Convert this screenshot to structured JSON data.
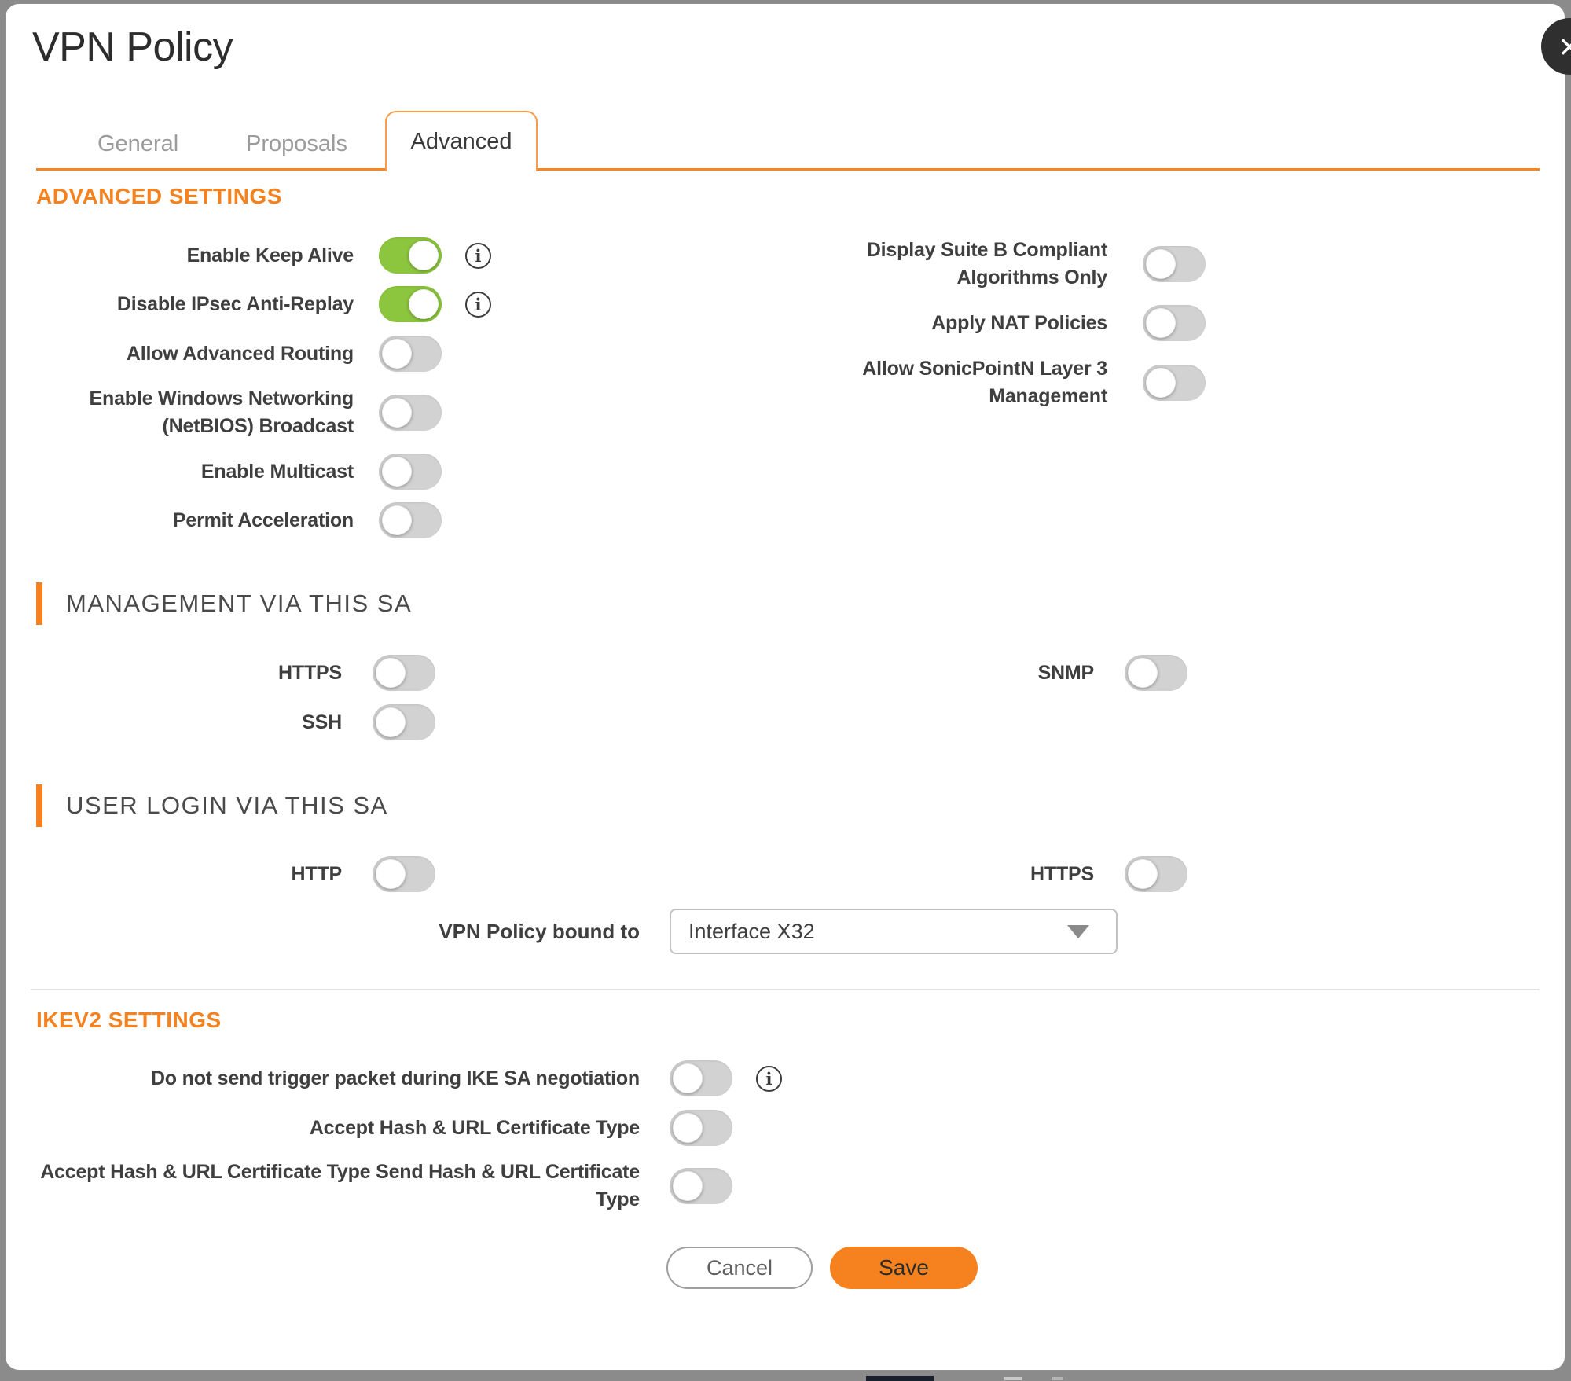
{
  "window": {
    "title": "VPN Policy",
    "close_glyph": "×"
  },
  "tabs": {
    "general": "General",
    "proposals": "Proposals",
    "advanced": "Advanced"
  },
  "colors": {
    "accent_orange": "#F5821F",
    "toggle_on_green": "#8CC63E",
    "toggle_off_gray": "#D2D2D2"
  },
  "info_glyph": "i",
  "dropdown_caret": "triangle-down-icon",
  "advanced_settings": {
    "heading": "ADVANCED SETTINGS",
    "left": [
      {
        "label": "Enable Keep Alive",
        "on": true,
        "info": true
      },
      {
        "label": "Disable IPsec Anti-Replay",
        "on": true,
        "info": true
      },
      {
        "label": "Allow Advanced Routing",
        "on": false
      },
      {
        "label": "Enable Windows Networking (NetBIOS) Broadcast",
        "on": false
      },
      {
        "label": "Enable Multicast",
        "on": false
      },
      {
        "label": "Permit Acceleration",
        "on": false
      }
    ],
    "right": [
      {
        "label": "Display Suite B Compliant Algorithms Only",
        "on": false
      },
      {
        "label": "Apply NAT Policies",
        "on": false
      },
      {
        "label": "Allow SonicPointN Layer 3 Management",
        "on": false
      }
    ]
  },
  "management": {
    "heading": "MANAGEMENT VIA THIS SA",
    "left": [
      {
        "label": "HTTPS",
        "on": false
      },
      {
        "label": "SSH",
        "on": false
      }
    ],
    "right": [
      {
        "label": "SNMP",
        "on": false
      }
    ]
  },
  "user_login": {
    "heading": "USER LOGIN VIA THIS SA",
    "left": [
      {
        "label": "HTTP",
        "on": false
      }
    ],
    "right": [
      {
        "label": "HTTPS",
        "on": false
      }
    ],
    "bound": {
      "label": "VPN Policy bound to",
      "value": "Interface X32"
    }
  },
  "ikev2": {
    "heading": "IKEV2 SETTINGS",
    "rows": [
      {
        "label": "Do not send trigger packet during IKE SA negotiation",
        "on": false,
        "info": true
      },
      {
        "label": "Accept Hash & URL Certificate Type",
        "on": false
      },
      {
        "label": "Accept Hash & URL Certificate Type Send Hash & URL Certificate Type",
        "on": false
      }
    ]
  },
  "footer": {
    "cancel": "Cancel",
    "save": "Save"
  }
}
